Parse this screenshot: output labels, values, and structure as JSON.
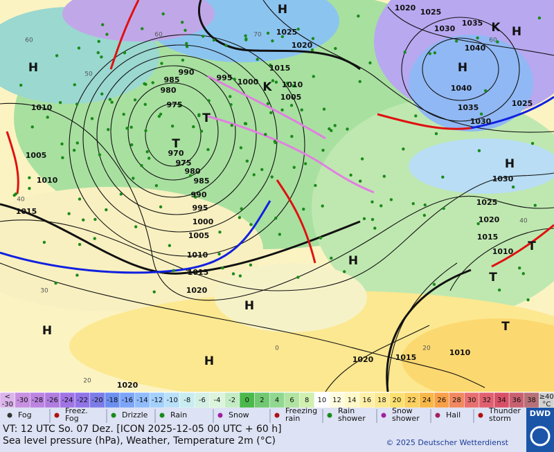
{
  "map": {
    "isobar_labels": [
      "1020",
      "1025",
      "1030",
      "1035",
      "1040",
      "1040",
      "1035",
      "1030",
      "1025",
      "1030",
      "1025",
      "1020",
      "1015",
      "1010",
      "1025",
      "1020",
      "1015",
      "1010",
      "1005",
      "1000",
      "995",
      "990",
      "985",
      "980",
      "975",
      "970",
      "975",
      "980",
      "985",
      "990",
      "995",
      "1000",
      "1005",
      "1010",
      "1015",
      "1020",
      "1010",
      "1005",
      "1010",
      "1015",
      "1020",
      "1015",
      "1010",
      "1020"
    ],
    "centers": [
      "H",
      "H",
      "H",
      "H",
      "T",
      "T",
      "H",
      "H",
      "T",
      "T",
      "H",
      "H",
      "H",
      "T",
      "K",
      "K"
    ],
    "grid_labels": [
      "60",
      "50",
      "40",
      "30",
      "20",
      "60",
      "70",
      "60",
      "40",
      "20",
      "0"
    ]
  },
  "scale": {
    "low": [
      "<",
      "-30"
    ],
    "low_color": "#dcb4ec",
    "steps": [
      -30,
      -28,
      -26,
      -24,
      -22,
      -20,
      -18,
      -16,
      -14,
      -12,
      -10,
      -8,
      -6,
      -4,
      -2,
      0,
      2,
      4,
      6,
      8,
      10,
      12,
      14,
      16,
      18,
      20,
      22,
      24,
      26,
      28,
      30,
      32,
      34,
      36,
      38
    ],
    "colors": [
      "#c890e0",
      "#bc84e0",
      "#b07ce0",
      "#a074e4",
      "#9074e8",
      "#7c7ce8",
      "#6c90f0",
      "#7ca4f8",
      "#90bcfc",
      "#a4d0fc",
      "#b8e0f8",
      "#c8ecf0",
      "#d4f0e4",
      "#dcf4dc",
      "#c4ecc4",
      "#4cb84c",
      "#70c870",
      "#90d890",
      "#b0e4a0",
      "#d0f0b0",
      "#ffffff",
      "#fffce0",
      "#fff8c8",
      "#fff0a8",
      "#fce890",
      "#fce070",
      "#fcd060",
      "#f8b848",
      "#f8a048",
      "#f08860",
      "#e87070",
      "#e06070",
      "#d85068",
      "#c86070",
      "#b87078"
    ],
    "high": [
      "≥40",
      "°C"
    ],
    "high_color": "#d0d0d0"
  },
  "legend": {
    "items": [
      [
        "Fog"
      ],
      [
        "Freez.",
        "Fog"
      ],
      [
        "Drizzle"
      ],
      [
        "Rain"
      ],
      [
        "Snow"
      ],
      [
        "Freezing",
        "rain"
      ],
      [
        "Rain",
        "shower"
      ],
      [
        "Snow",
        "shower"
      ],
      [
        "Hail"
      ],
      [
        "Thunder",
        "storm"
      ]
    ],
    "logo": "DWD"
  },
  "footer": {
    "valid_time": "VT: 12 UTC So.  07 Dez. [ICON 2025-12-05  00 UTC + 60 h]",
    "description": "Sea level pressure (hPa), Weather, Temperature 2m (°C)",
    "copyright": "© 2025 Deutscher Wetterdienst"
  }
}
